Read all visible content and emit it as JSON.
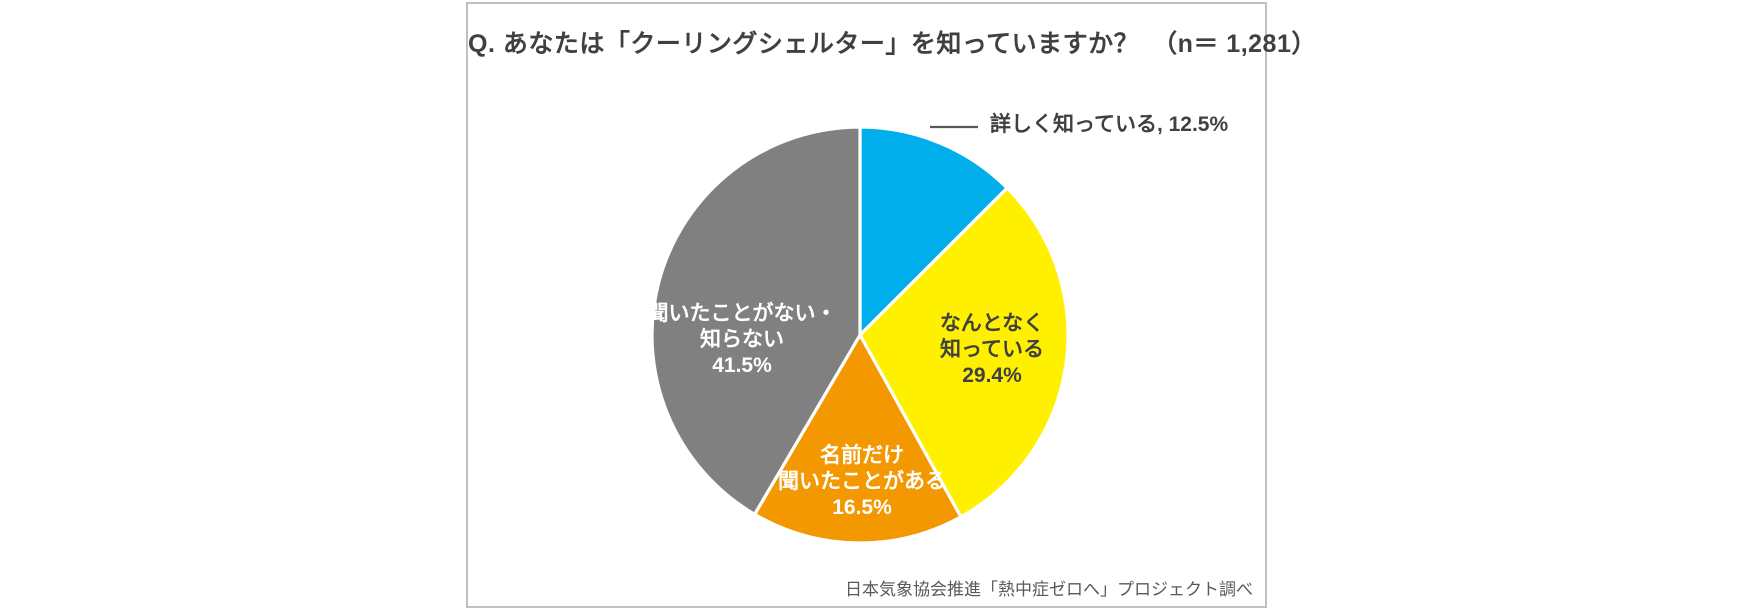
{
  "chart_data": {
    "type": "pie",
    "title": "Q. あなたは「クーリングシェルター」を知っていますか？　（n＝ 1,281）",
    "sample_size": "1,281",
    "source_note": "日本気象協会推進「熱中症ゼロへ」プロジェクト調べ",
    "start_angle_deg": 0,
    "direction": "clockwise",
    "legend": "none",
    "unit": "%",
    "categories": [
      "詳しく知っている",
      "なんとなく知っている",
      "名前だけ聞いたことがある",
      "聞いたことがない・知らない"
    ],
    "values": [
      12.5,
      29.4,
      16.5,
      41.5
    ],
    "slices": [
      {
        "category": "詳しく知っている",
        "value_pct": 12.5,
        "color": "#00AEEB",
        "label_placement": "outside-callout",
        "label_text": "詳しく知っている, 12.5%",
        "label_color": "#404040"
      },
      {
        "category": "なんとなく知っている",
        "value_pct": 29.4,
        "color": "#FFF000",
        "label_placement": "inside",
        "label_lines": [
          "なんとなく",
          "知っている",
          "29.4%"
        ],
        "label_color": "#404040"
      },
      {
        "category": "名前だけ聞いたことがある",
        "value_pct": 16.5,
        "color": "#F39800",
        "label_placement": "inside",
        "label_lines": [
          "名前だけ",
          "聞いたことがある",
          "16.5%"
        ],
        "label_color": "#FFFFFF"
      },
      {
        "category": "聞いたことがない・知らない",
        "value_pct": 41.5,
        "color": "#808080",
        "label_placement": "inside",
        "label_lines": [
          "聞いたことがない・",
          "知らない",
          "41.5%"
        ],
        "label_color": "#FFFFFF"
      }
    ],
    "callout_leader_color": "#595959"
  }
}
